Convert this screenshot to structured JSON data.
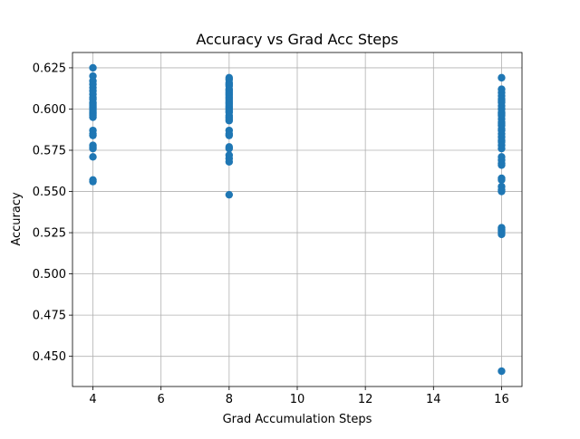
{
  "chart_data": {
    "type": "scatter",
    "title": "Accuracy vs Grad Acc Steps",
    "xlabel": "Grad Accumulation Steps",
    "ylabel": "Accuracy",
    "xlim": [
      3.4,
      16.6
    ],
    "ylim": [
      0.4317,
      0.6343
    ],
    "xticks": [
      4,
      6,
      8,
      10,
      12,
      14,
      16
    ],
    "xtick_labels": [
      "4",
      "6",
      "8",
      "10",
      "12",
      "14",
      "16"
    ],
    "yticks": [
      0.45,
      0.475,
      0.5,
      0.525,
      0.55,
      0.575,
      0.6,
      0.625
    ],
    "ytick_labels": [
      "0.450",
      "0.475",
      "0.500",
      "0.525",
      "0.550",
      "0.575",
      "0.600",
      "0.625"
    ],
    "grid": true,
    "color": "#1f77b4",
    "series": [
      {
        "x": [
          4,
          4,
          4,
          4,
          4,
          4,
          4,
          4,
          4,
          4,
          4,
          4,
          4,
          4,
          4,
          4,
          4,
          4,
          4,
          4,
          4,
          4,
          4,
          4,
          4,
          4,
          4,
          4
        ],
        "y": [
          0.625,
          0.62,
          0.617,
          0.615,
          0.613,
          0.611,
          0.609,
          0.607,
          0.606,
          0.604,
          0.603,
          0.602,
          0.601,
          0.6,
          0.599,
          0.598,
          0.597,
          0.596,
          0.595,
          0.587,
          0.585,
          0.584,
          0.578,
          0.577,
          0.576,
          0.571,
          0.557,
          0.556
        ]
      },
      {
        "x": [
          8,
          8,
          8,
          8,
          8,
          8,
          8,
          8,
          8,
          8,
          8,
          8,
          8,
          8,
          8,
          8,
          8,
          8,
          8,
          8,
          8,
          8,
          8,
          8,
          8,
          8,
          8,
          8,
          8,
          8,
          8,
          8,
          8
        ],
        "y": [
          0.619,
          0.618,
          0.616,
          0.615,
          0.614,
          0.612,
          0.611,
          0.61,
          0.609,
          0.608,
          0.607,
          0.606,
          0.605,
          0.604,
          0.603,
          0.602,
          0.601,
          0.6,
          0.599,
          0.598,
          0.596,
          0.595,
          0.594,
          0.593,
          0.587,
          0.585,
          0.584,
          0.577,
          0.576,
          0.572,
          0.57,
          0.568,
          0.548
        ]
      },
      {
        "x": [
          16,
          16,
          16,
          16,
          16,
          16,
          16,
          16,
          16,
          16,
          16,
          16,
          16,
          16,
          16,
          16,
          16,
          16,
          16,
          16,
          16,
          16,
          16,
          16,
          16,
          16,
          16,
          16,
          16,
          16,
          16,
          16,
          16,
          16,
          16,
          16,
          16,
          16,
          16
        ],
        "y": [
          0.619,
          0.612,
          0.61,
          0.608,
          0.606,
          0.604,
          0.602,
          0.6,
          0.598,
          0.596,
          0.594,
          0.592,
          0.59,
          0.588,
          0.587,
          0.585,
          0.583,
          0.581,
          0.58,
          0.578,
          0.576,
          0.571,
          0.569,
          0.567,
          0.566,
          0.558,
          0.557,
          0.553,
          0.551,
          0.55,
          0.528,
          0.527,
          0.526,
          0.525,
          0.524,
          0.441,
          0.605,
          0.597,
          0.591
        ]
      }
    ]
  }
}
